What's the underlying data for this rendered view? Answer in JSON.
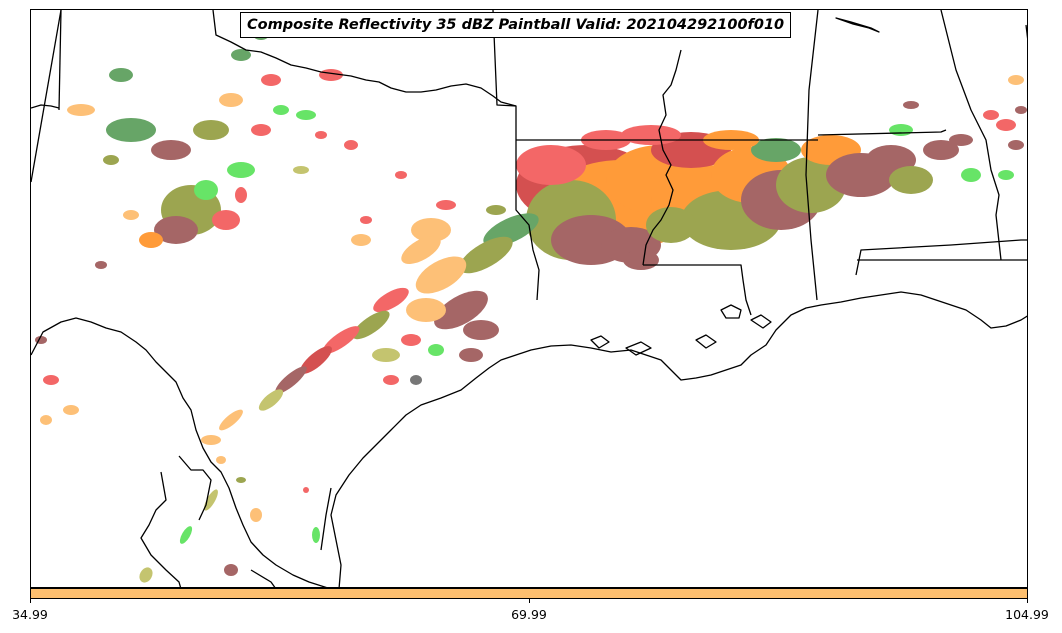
{
  "title": "Composite Reflectivity 35 dBZ Paintball Valid: 202104292100f010",
  "colorbar": {
    "color": "#fdbf6f",
    "ticks": [
      "34.99",
      "69.99",
      "104.99"
    ]
  },
  "palette": {
    "red": "#f03c3c",
    "dark_red": "#c81e1e",
    "orange": "#ff7f00",
    "light_orange": "#fdae50",
    "maroon": "#8b3a3a",
    "olive": "#808c1e",
    "khaki": "#b4b446",
    "green": "#3cdc3c",
    "dark_green": "#3c8c3c",
    "gray": "#505050"
  }
}
